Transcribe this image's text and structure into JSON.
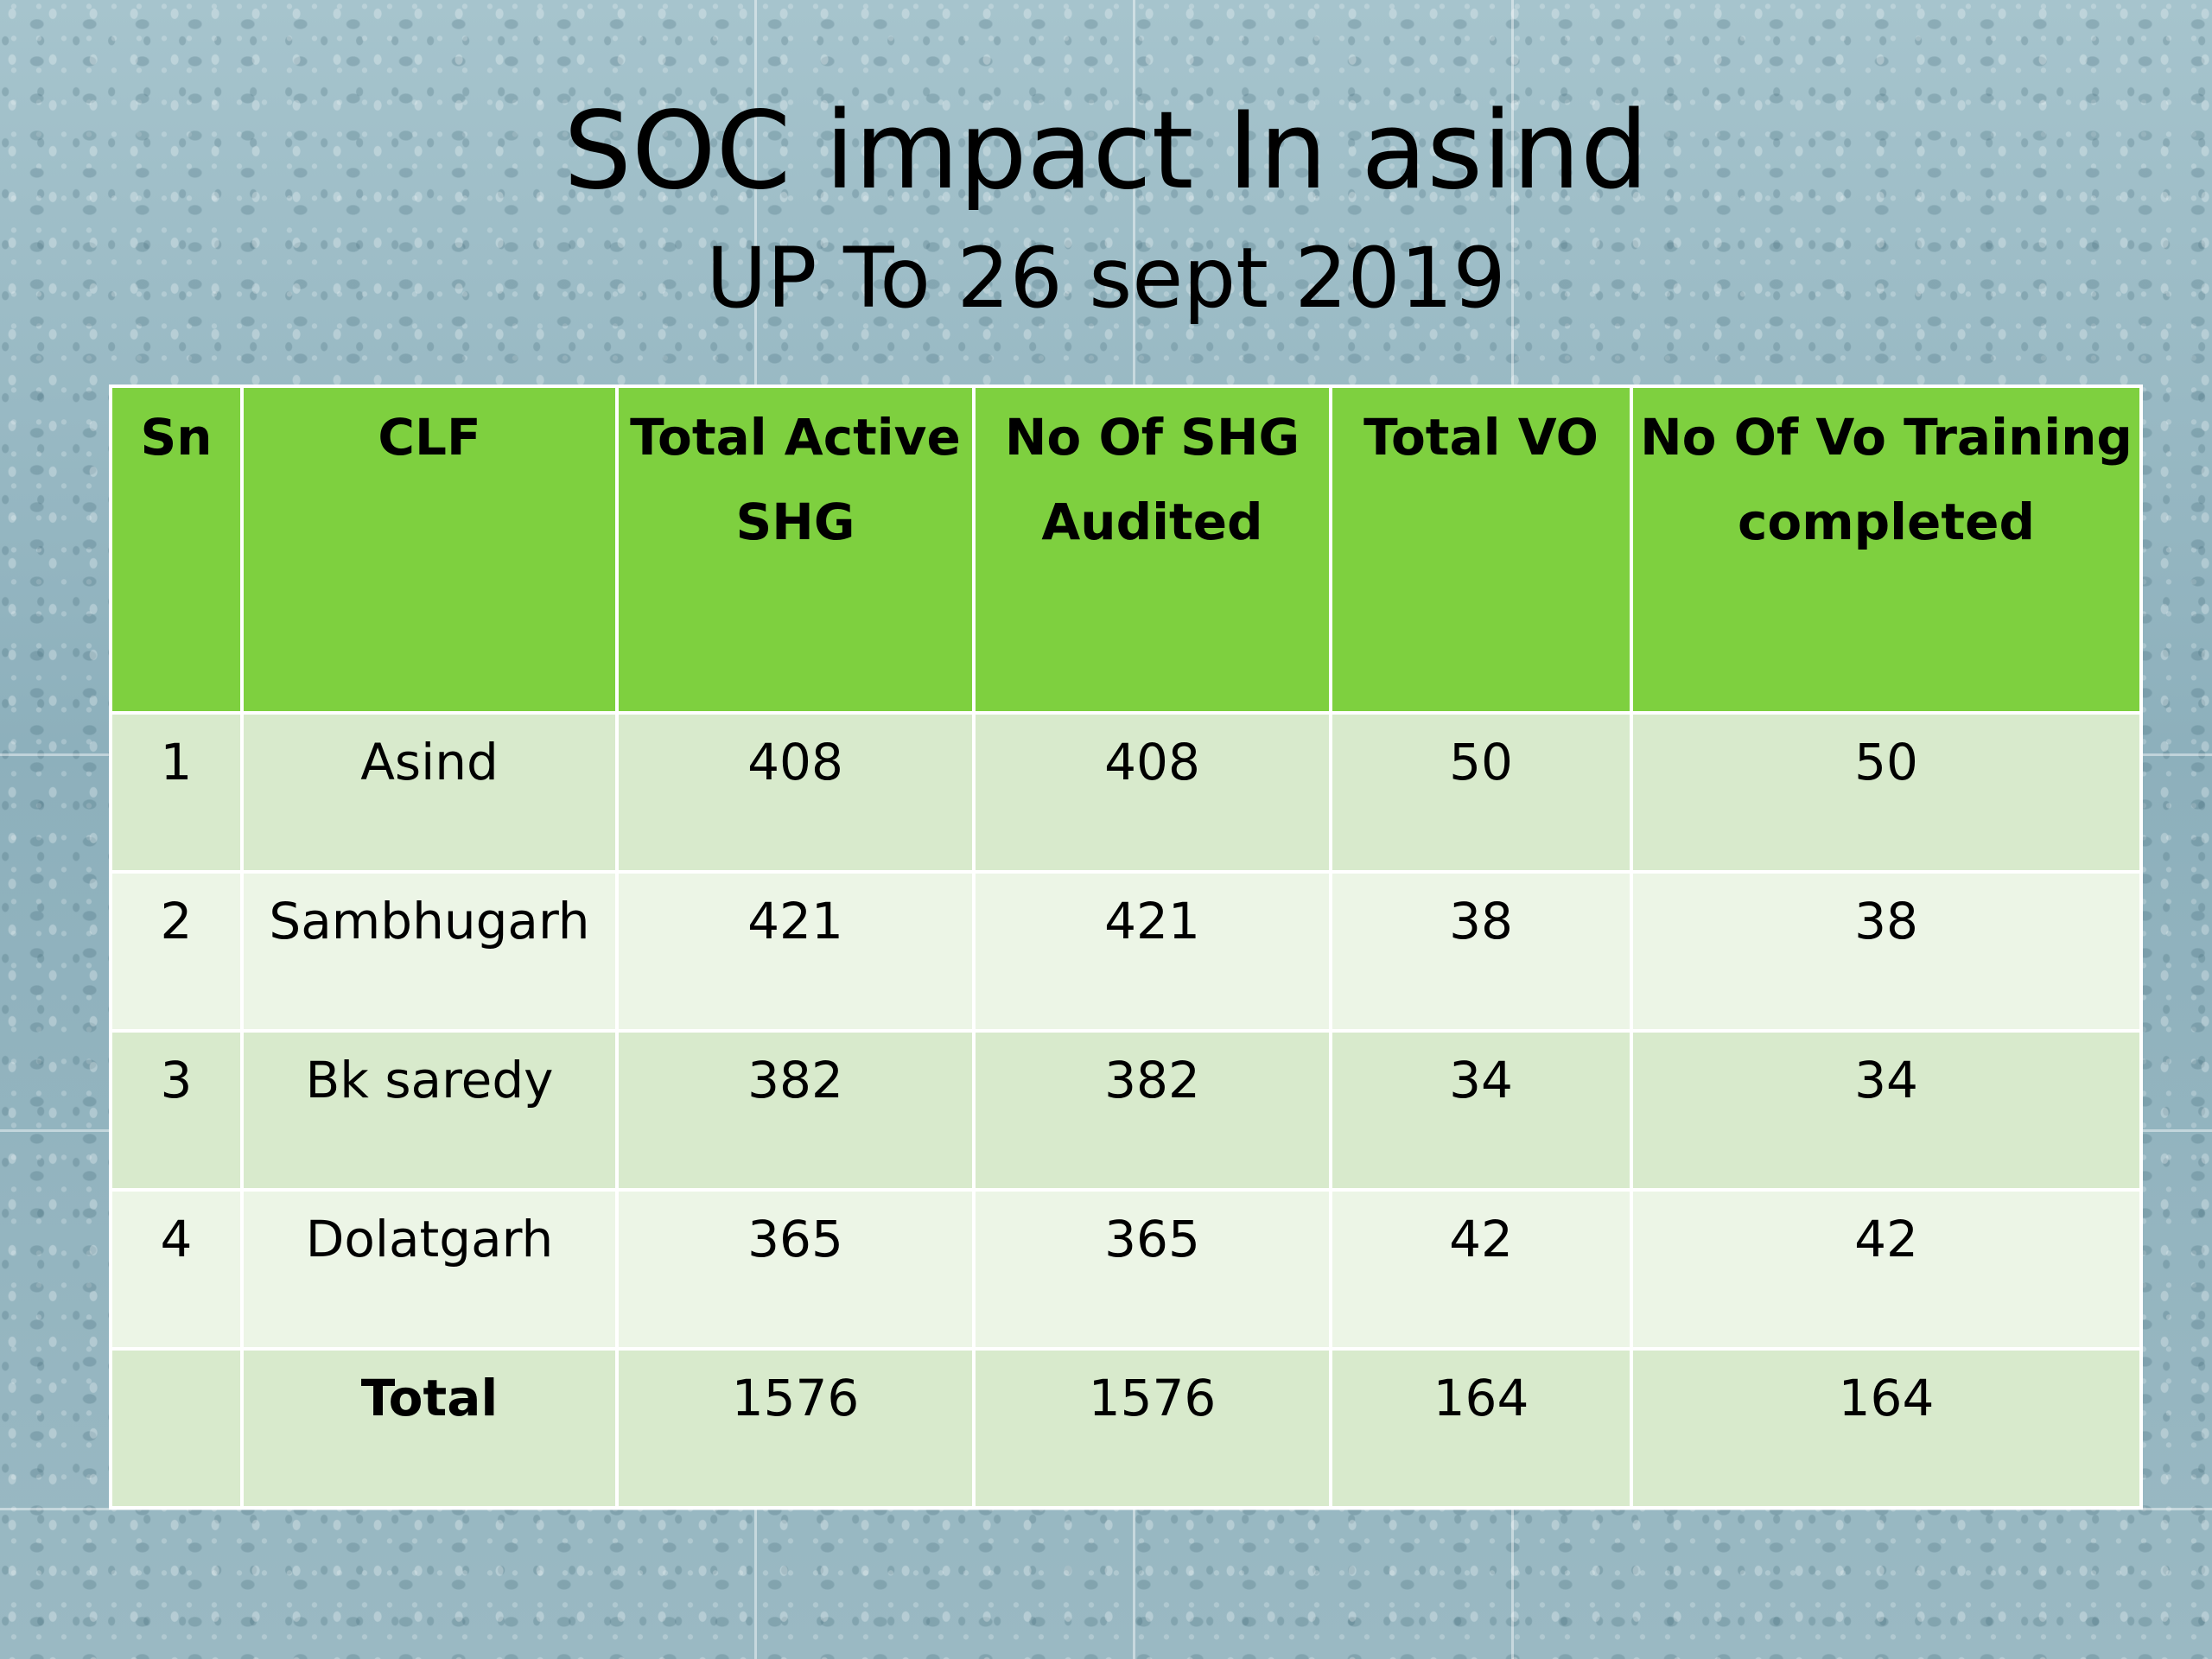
{
  "slide": {
    "title": "SOC impact In asind",
    "subtitle": "UP To 26 sept 2019"
  },
  "table": {
    "headers": [
      "Sn",
      "CLF",
      "Total Active SHG",
      "No Of SHG Audited",
      "Total VO",
      "No Of Vo Training completed"
    ],
    "rows": [
      {
        "sn": "1",
        "clf": "Asind",
        "total_active_shg": "408",
        "shg_audited": "408",
        "total_vo": "50",
        "vo_training_completed": "50"
      },
      {
        "sn": "2",
        "clf": "Sambhugarh",
        "total_active_shg": "421",
        "shg_audited": "421",
        "total_vo": "38",
        "vo_training_completed": "38"
      },
      {
        "sn": "3",
        "clf": "Bk saredy",
        "total_active_shg": "382",
        "shg_audited": "382",
        "total_vo": "34",
        "vo_training_completed": "34"
      },
      {
        "sn": "4",
        "clf": "Dolatgarh",
        "total_active_shg": "365",
        "shg_audited": "365",
        "total_vo": "42",
        "vo_training_completed": "42"
      }
    ],
    "total": {
      "sn": "",
      "label": "Total",
      "total_active_shg": "1576",
      "shg_audited": "1576",
      "total_vo": "164",
      "vo_training_completed": "164"
    }
  },
  "colors": {
    "header_green": "#7ed03f",
    "row_light_green": "#d8eacc",
    "row_pale_green": "#ecf5e6",
    "background_blue_gray": "#8fb2be"
  }
}
